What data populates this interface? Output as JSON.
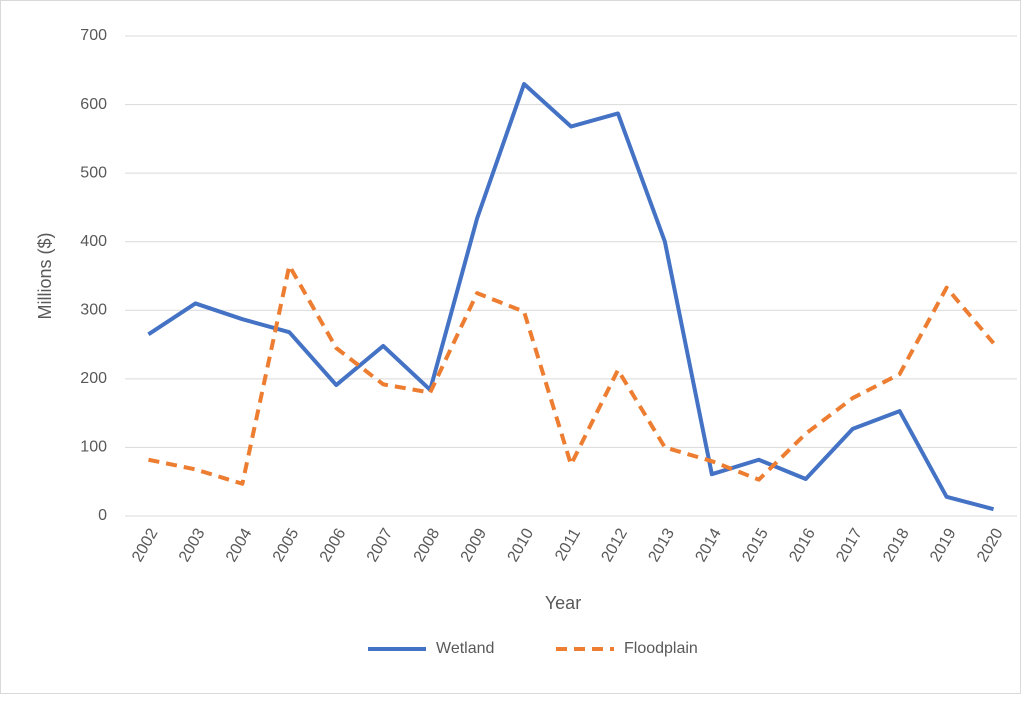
{
  "chart_data": {
    "type": "line",
    "x_label": "Year",
    "y_label": "Millions ($)",
    "categories": [
      "2002",
      "2003",
      "2004",
      "2005",
      "2006",
      "2007",
      "2008",
      "2009",
      "2010",
      "2011",
      "2012",
      "2013",
      "2014",
      "2015",
      "2016",
      "2017",
      "2018",
      "2019",
      "2020"
    ],
    "series": [
      {
        "name": "Wetland",
        "color": "#4472c4",
        "dashed": false,
        "values": [
          265,
          310,
          287,
          268,
          191,
          248,
          184,
          434,
          630,
          568,
          587,
          400,
          61,
          82,
          54,
          127,
          153,
          28,
          10
        ]
      },
      {
        "name": "Floodplain",
        "color": "#ed7d31",
        "dashed": true,
        "values": [
          82,
          68,
          47,
          365,
          245,
          192,
          180,
          325,
          298,
          75,
          213,
          100,
          80,
          53,
          120,
          172,
          207,
          333,
          252
        ]
      }
    ],
    "ylim": [
      0,
      700
    ],
    "yticks": [
      0,
      100,
      200,
      300,
      400,
      500,
      600,
      700
    ],
    "grid": true,
    "legend": "bottom"
  }
}
